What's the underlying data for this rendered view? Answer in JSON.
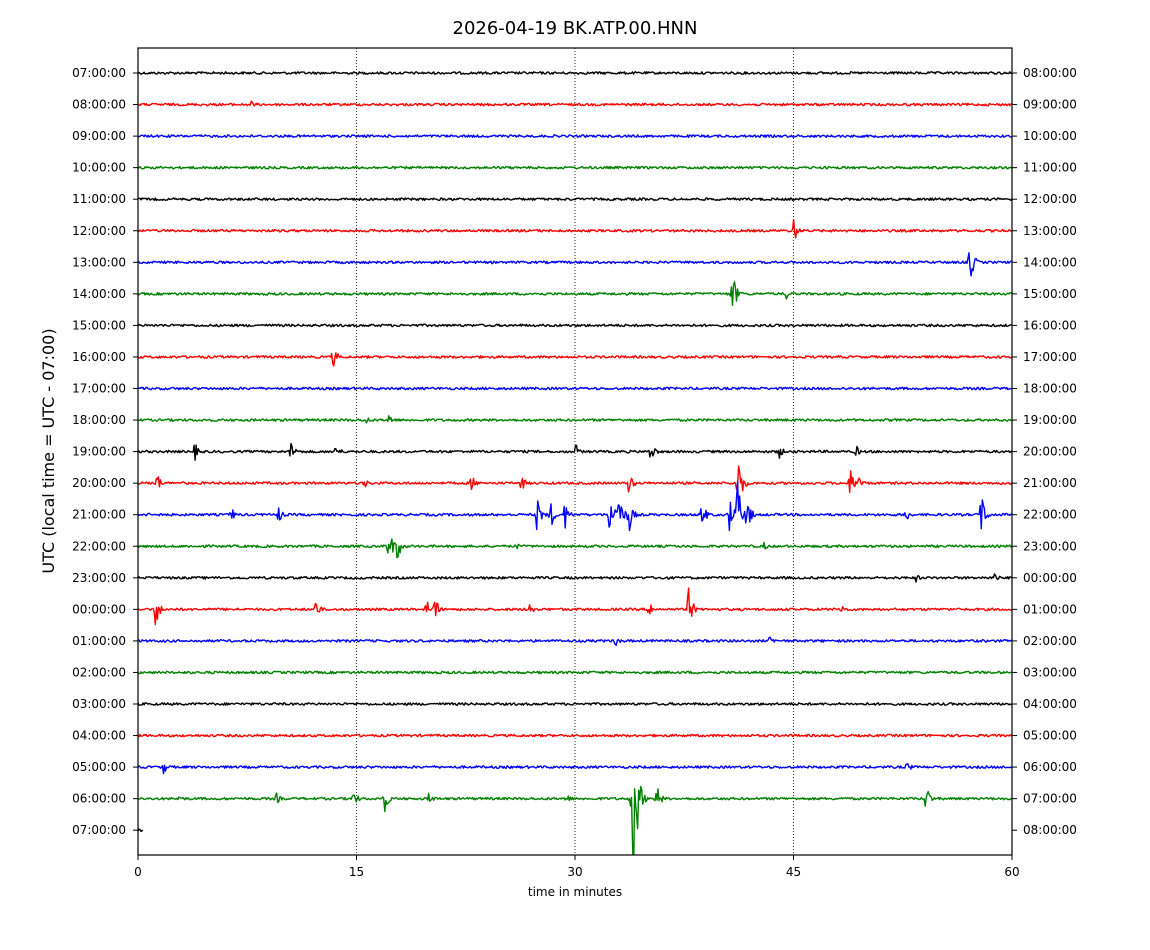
{
  "chart_data": {
    "type": "line",
    "title": "2026-04-19 BK.ATP.00.HNN",
    "xlabel": "time in minutes",
    "ylabel": "UTC (local time = UTC - 07:00)",
    "xlim": [
      0,
      60
    ],
    "xticks": [
      "0",
      "15",
      "30",
      "45",
      "60"
    ],
    "xtick_values": [
      0,
      15,
      30,
      45,
      60
    ],
    "vertical_gridlines_at": [
      15,
      30,
      45
    ],
    "trace_colors": [
      "#000000",
      "#ff0000",
      "#0000ff",
      "#008000"
    ],
    "left_labels": [
      "07:00:00",
      "08:00:00",
      "09:00:00",
      "10:00:00",
      "11:00:00",
      "12:00:00",
      "13:00:00",
      "14:00:00",
      "15:00:00",
      "16:00:00",
      "17:00:00",
      "18:00:00",
      "19:00:00",
      "20:00:00",
      "21:00:00",
      "22:00:00",
      "23:00:00",
      "00:00:00",
      "01:00:00",
      "02:00:00",
      "03:00:00",
      "04:00:00",
      "05:00:00",
      "06:00:00",
      "07:00:00"
    ],
    "right_labels": [
      "08:00:00",
      "09:00:00",
      "10:00:00",
      "11:00:00",
      "12:00:00",
      "13:00:00",
      "14:00:00",
      "15:00:00",
      "16:00:00",
      "17:00:00",
      "18:00:00",
      "19:00:00",
      "20:00:00",
      "21:00:00",
      "22:00:00",
      "23:00:00",
      "00:00:00",
      "01:00:00",
      "02:00:00",
      "03:00:00",
      "04:00:00",
      "05:00:00",
      "06:00:00",
      "07:00:00",
      "08:00:00"
    ],
    "traces": [
      {
        "events": []
      },
      {
        "events": [
          [
            7.8,
            0.15
          ]
        ]
      },
      {
        "events": []
      },
      {
        "events": []
      },
      {
        "events": []
      },
      {
        "events": [
          [
            45.0,
            0.45
          ]
        ]
      },
      {
        "events": [
          [
            57.1,
            0.7
          ]
        ]
      },
      {
        "events": [
          [
            40.8,
            0.75
          ],
          [
            44.5,
            0.2
          ]
        ]
      },
      {
        "events": []
      },
      {
        "events": [
          [
            13.4,
            0.35
          ]
        ]
      },
      {
        "events": []
      },
      {
        "events": [
          [
            15.7,
            0.15
          ],
          [
            17.2,
            0.25
          ]
        ]
      },
      {
        "events": [
          [
            3.9,
            0.3
          ],
          [
            10.5,
            0.4
          ],
          [
            13.6,
            0.3
          ],
          [
            30.0,
            0.3
          ],
          [
            35.2,
            0.4
          ],
          [
            44.0,
            0.25
          ],
          [
            49.3,
            0.2
          ]
        ]
      },
      {
        "events": [
          [
            1.2,
            0.5
          ],
          [
            15.5,
            0.2
          ],
          [
            22.9,
            0.3
          ],
          [
            26.3,
            0.3
          ],
          [
            33.7,
            0.4
          ],
          [
            41.2,
            1.0
          ],
          [
            48.9,
            0.5
          ],
          [
            49.4,
            0.4
          ]
        ]
      },
      {
        "events": [
          [
            0.7,
            0.2
          ],
          [
            6.4,
            0.25
          ],
          [
            9.6,
            0.35
          ],
          [
            27.4,
            0.6
          ],
          [
            28.3,
            0.5
          ],
          [
            29.3,
            0.5
          ],
          [
            32.4,
            1.0
          ],
          [
            33.0,
            0.8
          ],
          [
            33.7,
            0.6
          ],
          [
            38.7,
            0.5
          ],
          [
            40.6,
            0.7
          ],
          [
            41.1,
            1.4
          ],
          [
            41.8,
            0.6
          ],
          [
            52.7,
            0.3
          ],
          [
            57.9,
            0.7
          ]
        ]
      },
      {
        "events": [
          [
            17.2,
            0.7
          ],
          [
            17.8,
            0.5
          ],
          [
            25.9,
            0.15
          ],
          [
            43.0,
            0.15
          ]
        ]
      },
      {
        "events": [
          [
            35.8,
            0.15
          ],
          [
            53.4,
            0.15
          ],
          [
            58.8,
            0.2
          ]
        ]
      },
      {
        "events": [
          [
            1.2,
            0.6
          ],
          [
            12.2,
            0.35
          ],
          [
            19.8,
            0.35
          ],
          [
            20.4,
            0.4
          ],
          [
            26.9,
            0.3
          ],
          [
            35.1,
            0.3
          ],
          [
            37.8,
            0.7
          ],
          [
            48.3,
            0.2
          ]
        ]
      },
      {
        "events": [
          [
            32.8,
            0.2
          ],
          [
            43.4,
            0.2
          ]
        ]
      },
      {
        "events": []
      },
      {
        "events": []
      },
      {
        "events": []
      },
      {
        "events": [
          [
            1.7,
            0.3
          ],
          [
            52.8,
            0.2
          ]
        ]
      },
      {
        "events": [
          [
            2.8,
            0.15
          ],
          [
            9.5,
            0.2
          ],
          [
            14.8,
            0.3
          ],
          [
            16.9,
            0.5
          ],
          [
            20.0,
            0.25
          ],
          [
            29.4,
            0.2
          ],
          [
            33.8,
            0.4
          ],
          [
            34.0,
            3.2
          ],
          [
            35.6,
            0.5
          ],
          [
            54.1,
            0.5
          ]
        ]
      },
      {
        "events": []
      }
    ]
  }
}
